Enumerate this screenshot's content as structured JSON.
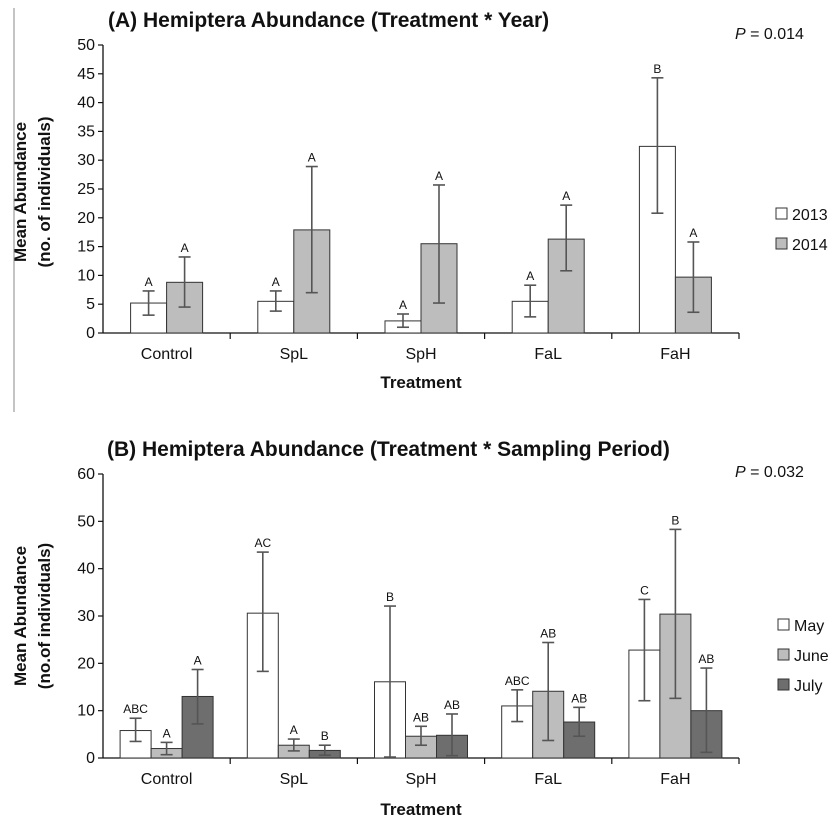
{
  "chart_data": [
    {
      "type": "bar",
      "title": "(A) Hemiptera Abundance (Treatment * Year)",
      "p_label": "P",
      "p_value": " = 0.014",
      "xlabel": "Treatment",
      "ylabel": [
        "Mean Abundance",
        "(no. of individuals)"
      ],
      "ylim": [
        0,
        50
      ],
      "yticks": [
        0,
        5,
        10,
        15,
        20,
        25,
        30,
        35,
        40,
        45,
        50
      ],
      "categories": [
        "Control",
        "SpL",
        "SpH",
        "FaL",
        "FaH"
      ],
      "legend_position": "right",
      "series": [
        {
          "name": "2013",
          "color": "#ffffff",
          "values": [
            5.2,
            5.5,
            2.1,
            5.5,
            32.4
          ],
          "error_low": [
            3.1,
            3.8,
            1.0,
            2.8,
            20.8
          ],
          "error_high": [
            7.3,
            7.3,
            3.3,
            8.3,
            44.3
          ],
          "letters": [
            "A",
            "A",
            "A",
            "A",
            "B"
          ]
        },
        {
          "name": "2014",
          "color": "#bdbdbd",
          "values": [
            8.8,
            17.9,
            15.5,
            16.3,
            9.7
          ],
          "error_low": [
            4.5,
            7.0,
            5.2,
            10.8,
            3.6
          ],
          "error_high": [
            13.2,
            28.9,
            25.7,
            22.2,
            15.8
          ],
          "letters": [
            "A",
            "A",
            "A",
            "A",
            "A"
          ]
        }
      ]
    },
    {
      "type": "bar",
      "title": "(B) Hemiptera Abundance (Treatment * Sampling Period)",
      "p_label": "P",
      "p_value": " = 0.032",
      "xlabel": "Treatment",
      "ylabel": [
        "Mean Abundance",
        "(no.of individuals)"
      ],
      "ylim": [
        0,
        60
      ],
      "yticks": [
        0,
        10,
        20,
        30,
        40,
        50,
        60
      ],
      "categories": [
        "Control",
        "SpL",
        "SpH",
        "FaL",
        "FaH"
      ],
      "legend_position": "right",
      "series": [
        {
          "name": "May",
          "color": "#ffffff",
          "values": [
            5.8,
            30.6,
            16.1,
            11.0,
            22.8
          ],
          "error_low": [
            3.5,
            18.3,
            0.2,
            7.7,
            12.1
          ],
          "error_high": [
            8.4,
            43.5,
            32.1,
            14.4,
            33.5
          ],
          "letters": [
            "ABC",
            "AC",
            "B",
            "ABC",
            "C"
          ]
        },
        {
          "name": "June",
          "color": "#bdbdbd",
          "values": [
            2.0,
            2.7,
            4.6,
            14.1,
            30.4
          ],
          "error_low": [
            0.7,
            1.5,
            2.7,
            3.7,
            12.6
          ],
          "error_high": [
            3.3,
            4.0,
            6.7,
            24.4,
            48.3
          ],
          "letters": [
            "A",
            "A",
            "AB",
            "AB",
            "B"
          ]
        },
        {
          "name": "July",
          "color": "#6e6e6e",
          "values": [
            13.0,
            1.6,
            4.8,
            7.6,
            10.0
          ],
          "error_low": [
            7.2,
            0.6,
            0.5,
            4.6,
            1.2
          ],
          "error_high": [
            18.7,
            2.7,
            9.3,
            10.7,
            19.0
          ],
          "letters": [
            "A",
            "B",
            "AB",
            "AB",
            "AB"
          ]
        }
      ]
    }
  ]
}
